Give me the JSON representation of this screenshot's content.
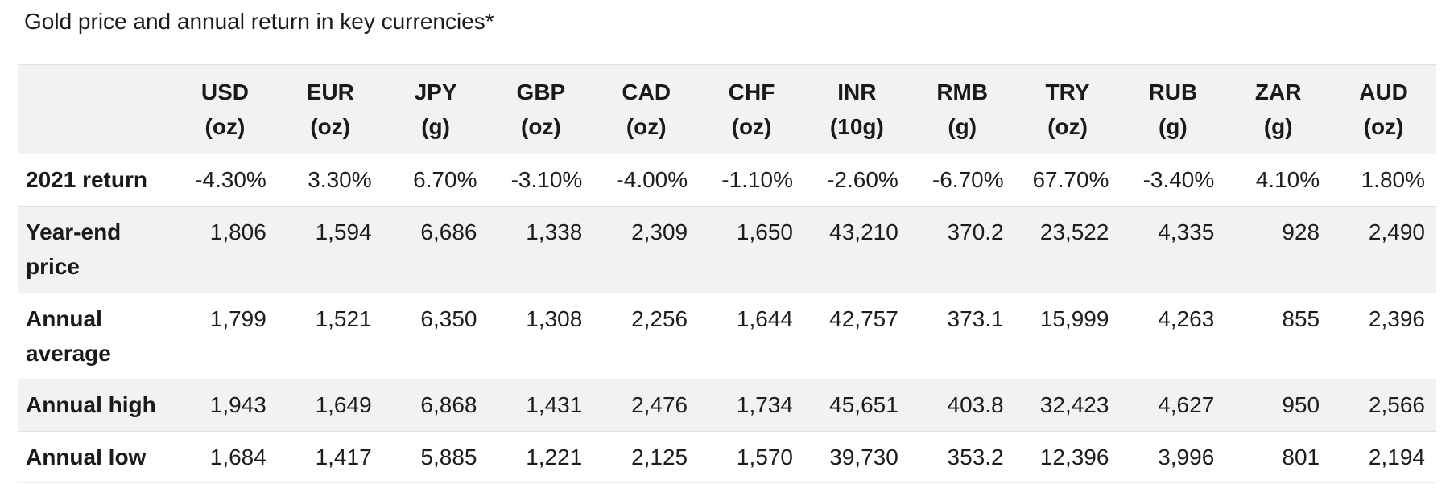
{
  "title": "Gold price and annual return in key currencies*",
  "colors": {
    "stripe": "#f2f2f2",
    "border": "#e2e2e2",
    "text": "#1a1a1a",
    "background": "#ffffff"
  },
  "chart_data": {
    "type": "table",
    "title": "Gold price and annual return in key currencies*",
    "legend_position": "none",
    "columns": [
      {
        "code": "USD",
        "unit": "(oz)"
      },
      {
        "code": "EUR",
        "unit": "(oz)"
      },
      {
        "code": "JPY",
        "unit": "(g)"
      },
      {
        "code": "GBP",
        "unit": "(oz)"
      },
      {
        "code": "CAD",
        "unit": "(oz)"
      },
      {
        "code": "CHF",
        "unit": "(oz)"
      },
      {
        "code": "INR",
        "unit": "(10g)"
      },
      {
        "code": "RMB",
        "unit": "(g)"
      },
      {
        "code": "TRY",
        "unit": "(oz)"
      },
      {
        "code": "RUB",
        "unit": "(g)"
      },
      {
        "code": "ZAR",
        "unit": "(g)"
      },
      {
        "code": "AUD",
        "unit": "(oz)"
      }
    ],
    "rows": [
      {
        "label": "2021 return",
        "values": [
          "-4.30%",
          "3.30%",
          "6.70%",
          "-3.10%",
          "-4.00%",
          "-1.10%",
          "-2.60%",
          "-6.70%",
          "67.70%",
          "-3.40%",
          "4.10%",
          "1.80%"
        ]
      },
      {
        "label": "Year-end price",
        "values": [
          "1,806",
          "1,594",
          "6,686",
          "1,338",
          "2,309",
          "1,650",
          "43,210",
          "370.2",
          "23,522",
          "4,335",
          "928",
          "2,490"
        ]
      },
      {
        "label": "Annual average",
        "values": [
          "1,799",
          "1,521",
          "6,350",
          "1,308",
          "2,256",
          "1,644",
          "42,757",
          "373.1",
          "15,999",
          "4,263",
          "855",
          "2,396"
        ]
      },
      {
        "label": "Annual high",
        "values": [
          "1,943",
          "1,649",
          "6,868",
          "1,431",
          "2,476",
          "1,734",
          "45,651",
          "403.8",
          "32,423",
          "4,627",
          "950",
          "2,566"
        ]
      },
      {
        "label": "Annual low",
        "values": [
          "1,684",
          "1,417",
          "5,885",
          "1,221",
          "2,125",
          "1,570",
          "39,730",
          "353.2",
          "12,396",
          "3,996",
          "801",
          "2,194"
        ]
      }
    ]
  }
}
